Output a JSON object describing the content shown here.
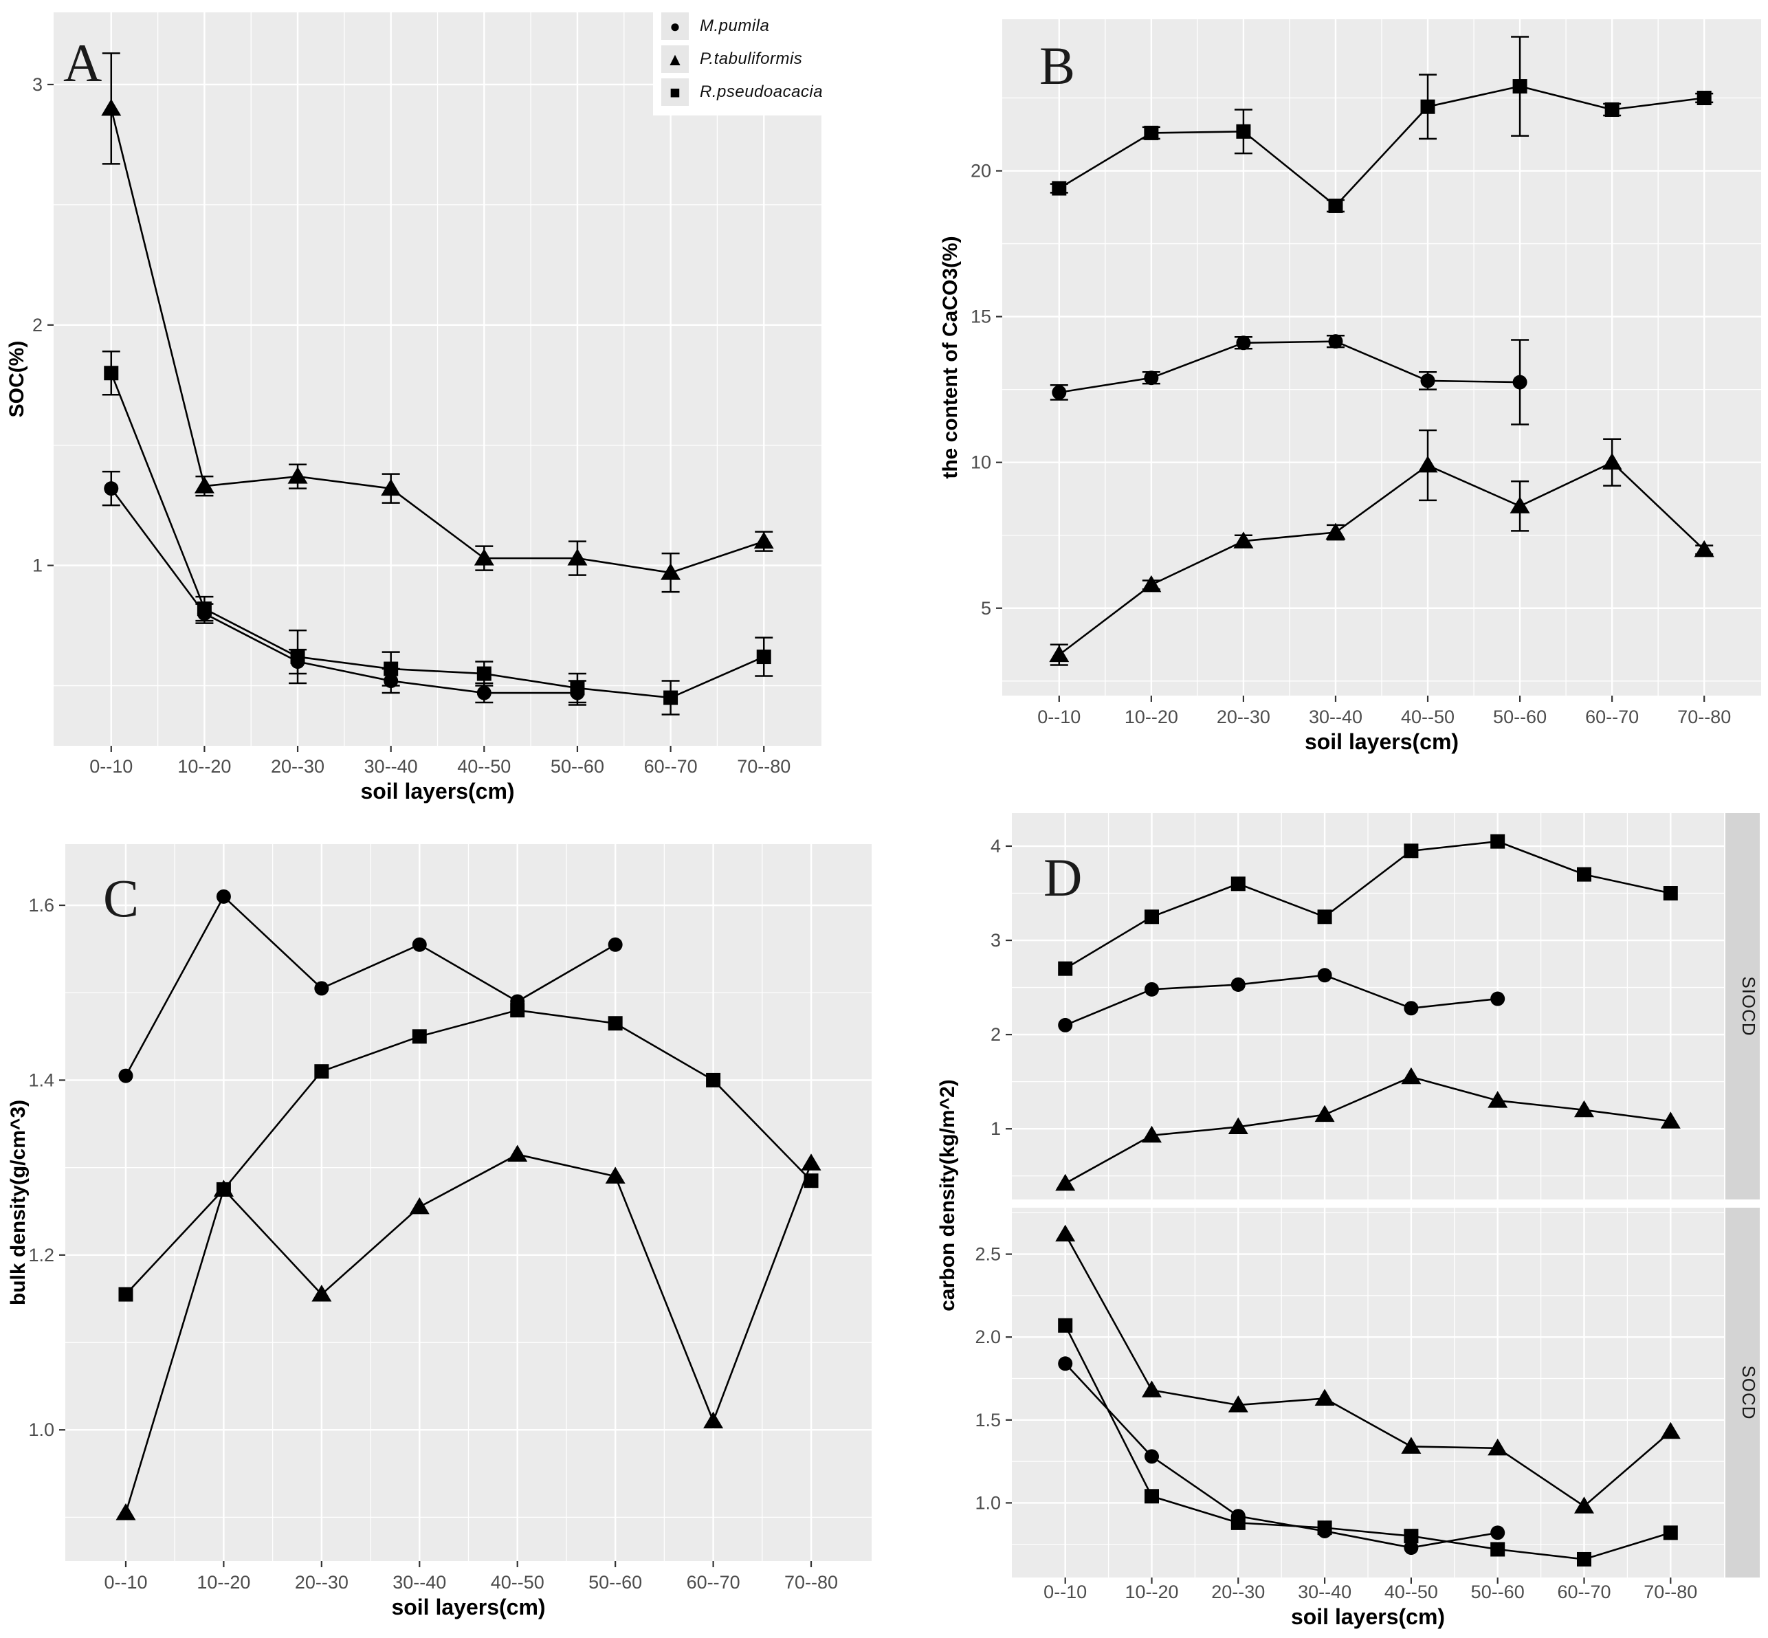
{
  "figure_title": "",
  "colors": {
    "plot_background": "#ebebeb",
    "page_background": "#ffffff",
    "gridline": "#ffffff",
    "series": "#000000",
    "tick_label": "#4d4d4d",
    "axis_title": "#000000",
    "facet_strip": "#d4d4d4",
    "legend_key_background": "#e7e7e7"
  },
  "legend": {
    "position": "top-right-of-panel-A",
    "items": [
      {
        "label": "M.pumila",
        "marker": "circle"
      },
      {
        "label": "P.tabuliformis",
        "marker": "triangle"
      },
      {
        "label": "R.pseudoacacia",
        "marker": "square"
      }
    ]
  },
  "chart_data": [
    {
      "panel": "A",
      "type": "line",
      "title": "A",
      "xlabel": "soil layers(cm)",
      "ylabel": "SOC(%)",
      "grid": true,
      "legend_position": "top-right",
      "categories": [
        "0--10",
        "10--20",
        "20--30",
        "30--40",
        "40--50",
        "50--60",
        "60--70",
        "70--80"
      ],
      "facets": [
        {
          "label": "",
          "ylim": [
            0.25,
            3.3
          ],
          "ytick_values": [
            3,
            2,
            1
          ],
          "ytick_labels": [
            "3",
            "2",
            "1"
          ],
          "series": [
            {
              "name": "M.pumila",
              "marker": "circle",
              "values": [
                1.32,
                0.8,
                0.6,
                0.52,
                0.47,
                0.47
              ],
              "errors": [
                0.07,
                0.04,
                0.05,
                0.05,
                0.04,
                0.05
              ]
            },
            {
              "name": "P.tabuliformis",
              "marker": "triangle",
              "values": [
                2.9,
                1.33,
                1.37,
                1.32,
                1.03,
                1.03,
                0.97,
                1.1
              ],
              "errors": [
                0.23,
                0.04,
                0.05,
                0.06,
                0.05,
                0.07,
                0.08,
                0.04
              ]
            },
            {
              "name": "R.pseudoacacia",
              "marker": "square",
              "values": [
                1.8,
                0.82,
                0.62,
                0.57,
                0.55,
                0.49,
                0.45,
                0.62
              ],
              "errors": [
                0.09,
                0.05,
                0.11,
                0.07,
                0.05,
                0.06,
                0.07,
                0.08
              ]
            }
          ]
        }
      ]
    },
    {
      "panel": "B",
      "type": "line",
      "title": "B",
      "xlabel": "soil layers(cm)",
      "ylabel": "the content of CaCO3(%)",
      "grid": true,
      "legend_position": "none",
      "categories": [
        "0--10",
        "10--20",
        "20--30",
        "30--40",
        "40--50",
        "50--60",
        "60--70",
        "70--80"
      ],
      "facets": [
        {
          "label": "",
          "ylim": [
            2.0,
            25.2
          ],
          "ytick_values": [
            20,
            15,
            10,
            5
          ],
          "ytick_labels": [
            "20",
            "15",
            "10",
            "5"
          ],
          "series": [
            {
              "name": "M.pumila",
              "marker": "circle",
              "values": [
                12.4,
                12.9,
                14.1,
                14.15,
                12.8,
                12.75
              ],
              "errors": [
                0.25,
                0.2,
                0.2,
                0.2,
                0.3,
                1.45
              ]
            },
            {
              "name": "P.tabuliformis",
              "marker": "triangle",
              "values": [
                3.4,
                5.8,
                7.3,
                7.6,
                9.9,
                8.5,
                10.0,
                7.0
              ],
              "errors": [
                0.35,
                0.15,
                0.2,
                0.25,
                1.2,
                0.85,
                0.8,
                0.15
              ]
            },
            {
              "name": "R.pseudoacacia",
              "marker": "square",
              "values": [
                19.4,
                21.3,
                21.35,
                18.8,
                22.2,
                22.9,
                22.1,
                22.5
              ],
              "errors": [
                0.15,
                0.2,
                0.75,
                0.2,
                1.1,
                1.7,
                0.2,
                0.15
              ]
            }
          ]
        }
      ]
    },
    {
      "panel": "C",
      "type": "line",
      "title": "C",
      "xlabel": "soil layers(cm)",
      "ylabel": "bulk density(g/cm^3)",
      "grid": true,
      "legend_position": "none",
      "categories": [
        "0--10",
        "10--20",
        "20--30",
        "30--40",
        "40--50",
        "50--60",
        "60--70",
        "70--80"
      ],
      "facets": [
        {
          "label": "",
          "ylim": [
            0.85,
            1.67
          ],
          "ytick_values": [
            1.6,
            1.4,
            1.2,
            1.0
          ],
          "ytick_labels": [
            "1.6",
            "1.4",
            "1.2",
            "1.0"
          ],
          "series": [
            {
              "name": "M.pumila",
              "marker": "circle",
              "values": [
                1.405,
                1.61,
                1.505,
                1.555,
                1.49,
                1.555
              ]
            },
            {
              "name": "P.tabuliformis",
              "marker": "triangle",
              "values": [
                0.905,
                1.275,
                1.155,
                1.255,
                1.315,
                1.29,
                1.01,
                1.305
              ]
            },
            {
              "name": "R.pseudoacacia",
              "marker": "square",
              "values": [
                1.155,
                1.275,
                1.41,
                1.45,
                1.48,
                1.465,
                1.4,
                1.285
              ]
            }
          ]
        }
      ]
    },
    {
      "panel": "D",
      "type": "line",
      "title": "D",
      "xlabel": "soil layers(cm)",
      "ylabel": "carbon density(kg/m^2)",
      "grid": true,
      "legend_position": "none",
      "categories": [
        "0--10",
        "10--20",
        "20--30",
        "30--40",
        "40--50",
        "50--60",
        "60--70",
        "70--80"
      ],
      "facets": [
        {
          "label": "SIOCD",
          "ylim": [
            0.25,
            4.35
          ],
          "ytick_values": [
            4,
            3,
            2,
            1
          ],
          "ytick_labels": [
            "4",
            "3",
            "2",
            "1"
          ],
          "series": [
            {
              "name": "M.pumila",
              "marker": "circle",
              "values": [
                2.1,
                2.48,
                2.53,
                2.63,
                2.28,
                2.38
              ]
            },
            {
              "name": "P.tabuliformis",
              "marker": "triangle",
              "values": [
                0.42,
                0.93,
                1.02,
                1.15,
                1.55,
                1.3,
                1.2,
                1.08
              ]
            },
            {
              "name": "R.pseudoacacia",
              "marker": "square",
              "values": [
                2.7,
                3.25,
                3.6,
                3.25,
                3.95,
                4.05,
                3.7,
                3.5
              ]
            }
          ]
        },
        {
          "label": "SOCD",
          "ylim": [
            0.55,
            2.78
          ],
          "ytick_values": [
            2.5,
            2.0,
            1.5,
            1.0
          ],
          "ytick_labels": [
            "2.5",
            "2.0",
            "1.5",
            "1.0"
          ],
          "series": [
            {
              "name": "M.pumila",
              "marker": "circle",
              "values": [
                1.84,
                1.28,
                0.92,
                0.83,
                0.73,
                0.82
              ]
            },
            {
              "name": "P.tabuliformis",
              "marker": "triangle",
              "values": [
                2.62,
                1.68,
                1.59,
                1.63,
                1.34,
                1.33,
                0.98,
                1.43
              ]
            },
            {
              "name": "R.pseudoacacia",
              "marker": "square",
              "values": [
                2.07,
                1.04,
                0.88,
                0.85,
                0.8,
                0.72,
                0.66,
                0.82
              ]
            }
          ]
        }
      ]
    }
  ]
}
